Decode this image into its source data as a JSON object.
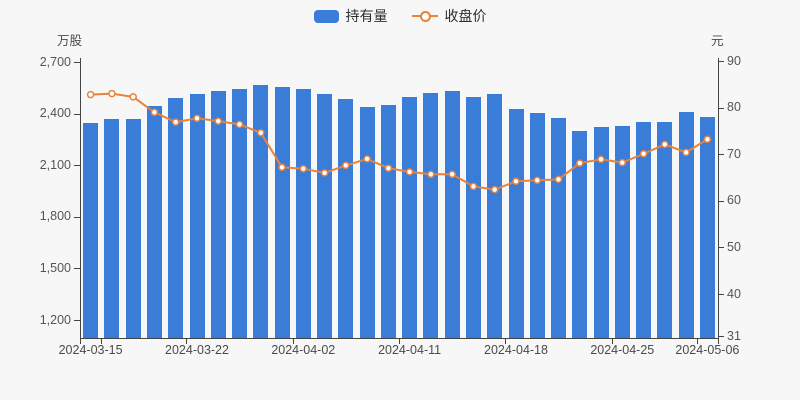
{
  "legend": {
    "items": [
      {
        "label": "持有量",
        "type": "bar",
        "color": "#3a7dd9"
      },
      {
        "label": "收盘价",
        "type": "line",
        "color": "#e8823c"
      }
    ]
  },
  "left_axis": {
    "name": "万股",
    "tick_labels": [
      "2,700",
      "2,400",
      "2,100",
      "1,800",
      "1,500",
      "1,200"
    ],
    "tick_values": [
      2700,
      2400,
      2100,
      1800,
      1500,
      1200
    ]
  },
  "right_axis": {
    "name": "元",
    "tick_labels": [
      "90",
      "80",
      "70",
      "60",
      "50",
      "40",
      "31"
    ],
    "tick_values": [
      90,
      80,
      70,
      60,
      50,
      40,
      31
    ],
    "min": 31,
    "max": 90
  },
  "x_axis": {
    "tick_labels": [
      {
        "index": 0,
        "label": "2024-03-15"
      },
      {
        "index": 5,
        "label": "2024-03-22"
      },
      {
        "index": 10,
        "label": "2024-04-02"
      },
      {
        "index": 15,
        "label": "2024-04-11"
      },
      {
        "index": 20,
        "label": "2024-04-18"
      },
      {
        "index": 25,
        "label": "2024-04-25"
      },
      {
        "index": 29,
        "label": "2024-05-06"
      }
    ]
  },
  "chart_data": {
    "type": "combo-bar-line",
    "x_count": 30,
    "x_tick_labels": [
      {
        "index": 0,
        "label": "2024-03-15"
      },
      {
        "index": 5,
        "label": "2024-03-22"
      },
      {
        "index": 10,
        "label": "2024-04-02"
      },
      {
        "index": 15,
        "label": "2024-04-11"
      },
      {
        "index": 20,
        "label": "2024-04-18"
      },
      {
        "index": 25,
        "label": "2024-04-25"
      },
      {
        "index": 29,
        "label": "2024-05-06"
      }
    ],
    "series": [
      {
        "name": "持有量",
        "type": "bar",
        "y_axis": "left",
        "unit": "万股",
        "color": "#3a7dd9",
        "values": [
          2346,
          2366,
          2370,
          2447,
          2489,
          2512,
          2529,
          2542,
          2569,
          2553,
          2546,
          2512,
          2484,
          2438,
          2452,
          2499,
          2520,
          2530,
          2495,
          2517,
          2427,
          2404,
          2375,
          2300,
          2325,
          2328,
          2350,
          2351,
          2410,
          2379
        ]
      },
      {
        "name": "收盘价",
        "type": "line",
        "y_axis": "right",
        "unit": "元",
        "color": "#e8823c",
        "marker": "hollow-circle",
        "values": [
          82.8,
          83.0,
          82.3,
          79.0,
          76.9,
          77.7,
          77.1,
          76.4,
          74.6,
          67.2,
          66.9,
          66.0,
          67.6,
          69.0,
          67.0,
          66.2,
          65.7,
          65.7,
          63.1,
          62.4,
          64.2,
          64.4,
          64.6,
          68.1,
          68.9,
          68.2,
          70.1,
          72.1,
          70.4,
          73.2
        ]
      }
    ],
    "left_axis_ticks": [
      2700,
      2400,
      2100,
      1800,
      1500,
      1200
    ],
    "right_axis_ticks": [
      90,
      80,
      70,
      60,
      50,
      40,
      31
    ],
    "legend_position": "top-center",
    "grid_lines": false
  }
}
